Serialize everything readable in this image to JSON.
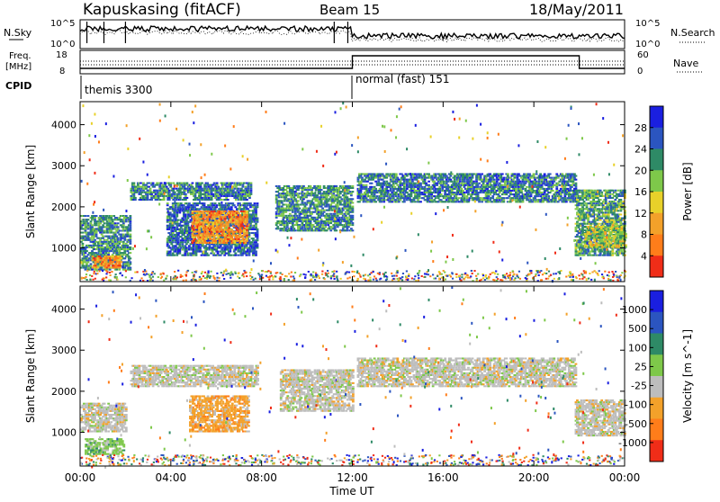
{
  "header": {
    "station": "Kapuskasing (fitACF)",
    "beam": "Beam 15",
    "date": "18/May/2011"
  },
  "top_panels": {
    "noise": {
      "left_label": "N.Sky",
      "right_label": "N.Search",
      "left_ticks": [
        "10^5",
        "10^0"
      ],
      "right_ticks": [
        "10^5",
        "10^0"
      ]
    },
    "freq": {
      "left_label_1": "Freq.",
      "left_label_2": "[MHz]",
      "right_label": "Nave",
      "left_ticks": [
        "18",
        "8"
      ],
      "right_ticks": [
        "60",
        "0"
      ]
    },
    "cpid": {
      "label": "CPID",
      "segments": [
        {
          "label": "themis 3300",
          "start_hour": 0,
          "end_hour": 12
        },
        {
          "label": "normal (fast) 151",
          "start_hour": 12,
          "end_hour": 24
        }
      ]
    }
  },
  "chart_data": [
    {
      "type": "heatmap",
      "name": "Power",
      "ylabel": "Slant Range [km]",
      "xlabel": "Time UT",
      "x_ticks": [
        "00:00",
        "04:00",
        "08:00",
        "12:00",
        "16:00",
        "20:00",
        "00:00"
      ],
      "x_range_hours": [
        0,
        24
      ],
      "y_ticks": [
        "1000",
        "2000",
        "3000",
        "4000"
      ],
      "ylim": [
        180,
        4560
      ],
      "colorbar_label": "Power [dB]",
      "colorbar_ticks": [
        "4",
        "8",
        "12",
        "16",
        "20",
        "24",
        "28"
      ],
      "colorbar_range": [
        0,
        30
      ],
      "colorbar_colors": [
        "#1a1fe0",
        "#2b55c0",
        "#2e8a66",
        "#7ec84a",
        "#e8d12a",
        "#f3a12a",
        "#ff7d1a",
        "#f02d18"
      ],
      "regions": [
        {
          "t0": 0.0,
          "t1": 2.2,
          "r0": 450,
          "r1": 1800,
          "intensity": 0.35
        },
        {
          "t0": 0.5,
          "t1": 1.8,
          "r0": 500,
          "r1": 800,
          "intensity": 0.85
        },
        {
          "t0": 2.2,
          "t1": 7.5,
          "r0": 2150,
          "r1": 2600,
          "intensity": 0.3
        },
        {
          "t0": 3.8,
          "t1": 7.8,
          "r0": 800,
          "r1": 2100,
          "intensity": 0.25
        },
        {
          "t0": 4.9,
          "t1": 7.3,
          "r0": 1100,
          "r1": 1900,
          "intensity": 0.85
        },
        {
          "t0": 8.6,
          "t1": 12.0,
          "r0": 1400,
          "r1": 2500,
          "intensity": 0.35
        },
        {
          "t0": 12.2,
          "t1": 21.8,
          "r0": 2100,
          "r1": 2800,
          "intensity": 0.3
        },
        {
          "t0": 21.8,
          "t1": 24.0,
          "r0": 800,
          "r1": 2400,
          "intensity": 0.4
        },
        {
          "t0": 22.2,
          "t1": 24.0,
          "r0": 1000,
          "r1": 1500,
          "intensity": 0.55
        }
      ]
    },
    {
      "type": "heatmap",
      "name": "Velocity",
      "ylabel": "Slant Range [km]",
      "xlabel": "Time UT",
      "x_ticks": [
        "00:00",
        "04:00",
        "08:00",
        "12:00",
        "16:00",
        "20:00",
        "00:00"
      ],
      "x_range_hours": [
        0,
        24
      ],
      "y_ticks": [
        "1000",
        "2000",
        "3000",
        "4000"
      ],
      "ylim": [
        180,
        4560
      ],
      "colorbar_label": "Velocity [m s^-1]",
      "colorbar_ticks": [
        "1000",
        "500",
        "100",
        "25",
        "-25",
        "-100",
        "-500",
        "-1000"
      ],
      "colorbar_range": [
        -1200,
        1200
      ],
      "colorbar_colors": [
        "#1a1fe0",
        "#2b55c0",
        "#2e8a66",
        "#7ec84a",
        "#bdbdbd",
        "#f3a12a",
        "#ff7d1a",
        "#f02d18"
      ],
      "regions": [
        {
          "t0": 0.0,
          "t1": 2.0,
          "r0": 1000,
          "r1": 1700,
          "value": 25
        },
        {
          "t0": 0.2,
          "t1": 1.9,
          "r0": 450,
          "r1": 850,
          "value": 120
        },
        {
          "t0": 2.2,
          "t1": 7.8,
          "r0": 2100,
          "r1": 2600,
          "value": 0
        },
        {
          "t0": 4.8,
          "t1": 7.4,
          "r0": 1000,
          "r1": 1900,
          "value": -200
        },
        {
          "t0": 8.8,
          "t1": 12.0,
          "r0": 1500,
          "r1": 2500,
          "value": 0
        },
        {
          "t0": 12.2,
          "t1": 21.8,
          "r0": 2100,
          "r1": 2800,
          "value": 0
        },
        {
          "t0": 21.8,
          "t1": 24.0,
          "r0": 900,
          "r1": 1800,
          "value": 0
        }
      ]
    }
  ]
}
